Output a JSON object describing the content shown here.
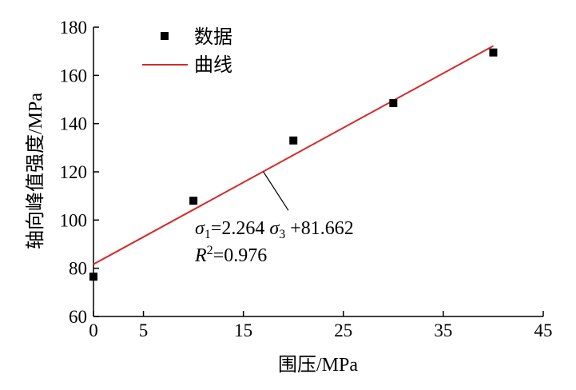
{
  "chart_data": {
    "type": "scatter",
    "xlabel": "围压/MPa",
    "ylabel": "轴向峰值强度/MPa",
    "xlim": [
      0,
      45
    ],
    "ylim": [
      60,
      180
    ],
    "x_ticks": [
      0,
      5,
      15,
      25,
      35,
      45
    ],
    "y_ticks": [
      60,
      80,
      100,
      120,
      140,
      160,
      180
    ],
    "grid": false,
    "legend_position": "top-left",
    "series": [
      {
        "name": "数据",
        "type": "scatter",
        "marker": "square",
        "color": "#000000",
        "x": [
          0,
          10,
          20,
          30,
          40
        ],
        "y": [
          76.5,
          108,
          133,
          148.5,
          169.5
        ]
      },
      {
        "name": "曲线",
        "type": "line",
        "color": "#d42a2a",
        "x": [
          0,
          40
        ],
        "y": [
          81.662,
          172.222
        ]
      }
    ],
    "annotation": {
      "sigma": "σ",
      "sub1": "1",
      "equation_middle": "=2.264 ",
      "sub3": "3",
      "equation_end": " +81.662",
      "r2_letter": "R",
      "r2_exp": "2",
      "r2_value": "=0.976",
      "pointer_from": [
        17,
        120
      ],
      "pointer_to": [
        19.5,
        104
      ]
    }
  }
}
